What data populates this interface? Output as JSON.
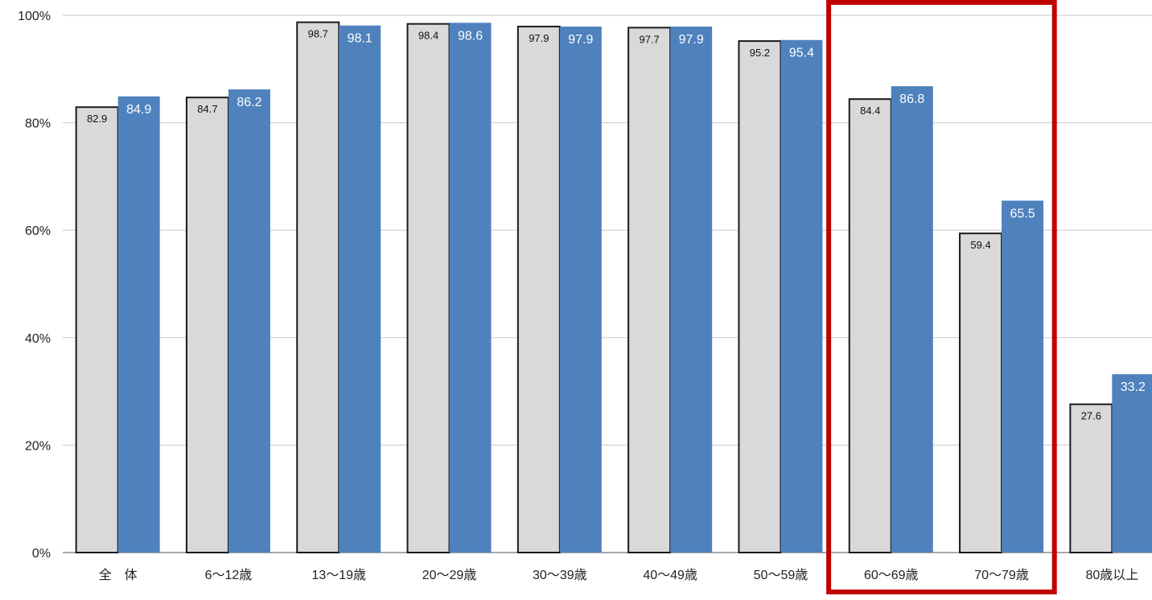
{
  "chart_data": {
    "type": "bar",
    "categories": [
      "全　体",
      "6〜12歳",
      "13〜19歳",
      "20〜29歳",
      "30〜39歳",
      "40〜49歳",
      "50〜59歳",
      "60〜69歳",
      "70〜79歳",
      "80歳以上"
    ],
    "series": [
      {
        "values": [
          82.9,
          84.7,
          98.7,
          98.4,
          97.9,
          97.7,
          95.2,
          84.4,
          59.4,
          27.6
        ],
        "color": "#d9d9d9"
      },
      {
        "values": [
          84.9,
          86.2,
          98.1,
          98.6,
          97.9,
          97.9,
          95.4,
          86.8,
          65.5,
          33.2
        ],
        "color": "#4f81bd"
      }
    ],
    "y_ticks": [
      "0%",
      "20%",
      "40%",
      "60%",
      "80%",
      "100%"
    ],
    "ylim": [
      0,
      100
    ],
    "grid": true,
    "highlight": {
      "categories": [
        "60〜69歳",
        "70〜79歳"
      ],
      "color": "#c00000"
    }
  }
}
